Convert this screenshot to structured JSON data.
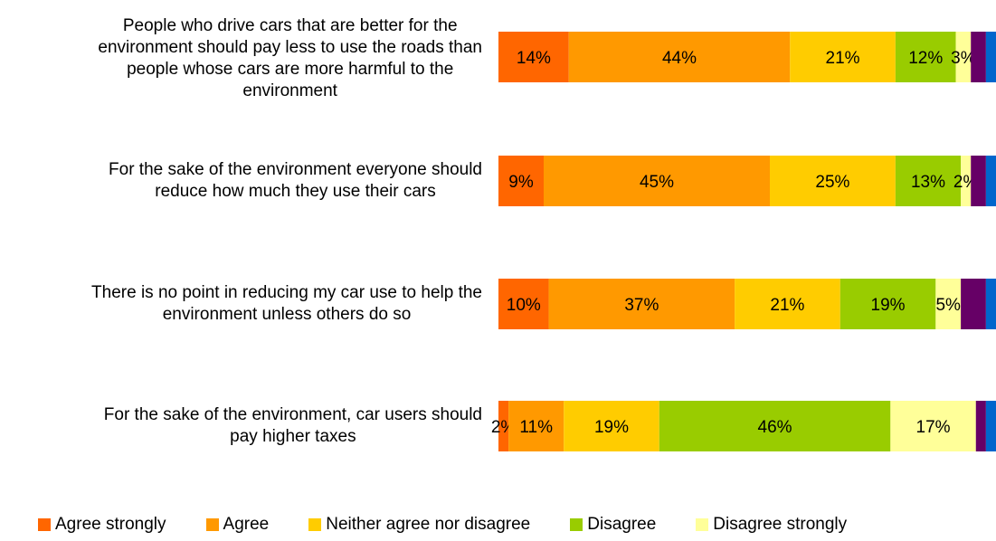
{
  "chart_data": {
    "type": "bar",
    "orientation": "horizontal",
    "stacked": true,
    "percent": true,
    "xlim": [
      0,
      100
    ],
    "categories": [
      "People who drive cars that are better for the environment should pay less to use the roads than people whose cars are more harmful to the environment",
      "For the sake of the environment everyone should reduce how much they use their cars",
      "There is no point in reducing my car use to help the environment unless others do so",
      "For the sake of the environment, car users should pay higher taxes"
    ],
    "series": [
      {
        "name": "Agree strongly",
        "color": "#FF6600",
        "values": [
          14,
          9,
          10,
          2
        ],
        "labels": [
          "14%",
          "9%",
          "10%",
          "2%"
        ]
      },
      {
        "name": "Agree",
        "color": "#FF9900",
        "values": [
          44,
          45,
          37,
          11
        ],
        "labels": [
          "44%",
          "45%",
          "37%",
          "11%"
        ]
      },
      {
        "name": "Neither agree nor disagree",
        "color": "#FFCC00",
        "values": [
          21,
          25,
          21,
          19
        ],
        "labels": [
          "21%",
          "25%",
          "21%",
          "19%"
        ]
      },
      {
        "name": "Disagree",
        "color": "#99CC00",
        "values": [
          12,
          13,
          19,
          46
        ],
        "labels": [
          "12%",
          "13%",
          "19%",
          "46%"
        ]
      },
      {
        "name": "Disagree strongly",
        "color": "#FFFF99",
        "values": [
          3,
          2,
          5,
          17
        ],
        "labels": [
          "3%",
          "2%",
          "5%",
          "17%"
        ]
      },
      {
        "color": "#660066",
        "values": [
          3,
          3,
          5,
          2
        ],
        "labels": [
          "",
          "",
          "",
          ""
        ]
      },
      {
        "color": "#0066CC",
        "values": [
          2,
          2,
          2,
          2
        ],
        "labels": [
          "",
          "",
          "",
          ""
        ]
      }
    ],
    "legend_position": "bottom",
    "grid": false
  }
}
